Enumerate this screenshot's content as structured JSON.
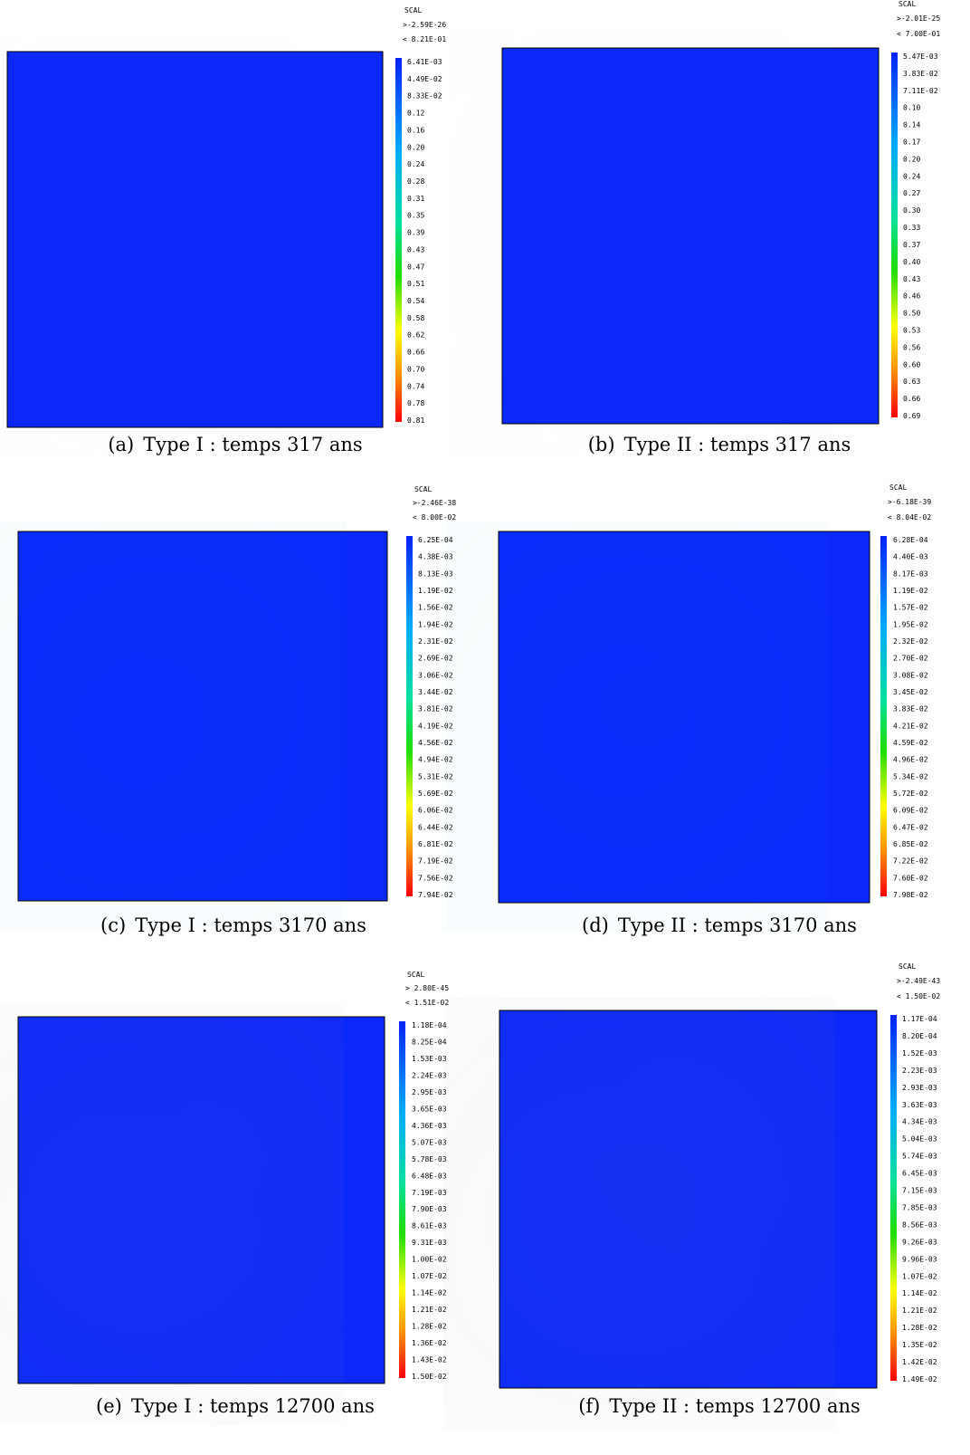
{
  "panels": [
    {
      "tag": "(a)",
      "caption": "Type I : temps 317 ans",
      "scal": "SCAL",
      "min": ">-2.59E-26",
      "max": "< 8.21E-01",
      "ticks": [
        "6.41E-03",
        "4.49E-02",
        "8.33E-02",
        "0.12",
        "0.16",
        "0.20",
        "0.24",
        "0.28",
        "0.31",
        "0.35",
        "0.39",
        "0.43",
        "0.47",
        "0.51",
        "0.54",
        "0.58",
        "0.62",
        "0.66",
        "0.70",
        "0.74",
        "0.78",
        "0.81"
      ]
    },
    {
      "tag": "(b)",
      "caption": "Type II : temps 317 ans",
      "scal": "SCAL",
      "min": ">-2.01E-25",
      "max": "< 7.00E-01",
      "ticks": [
        "5.47E-03",
        "3.83E-02",
        "7.11E-02",
        "0.10",
        "0.14",
        "0.17",
        "0.20",
        "0.24",
        "0.27",
        "0.30",
        "0.33",
        "0.37",
        "0.40",
        "0.43",
        "0.46",
        "0.50",
        "0.53",
        "0.56",
        "0.60",
        "0.63",
        "0.66",
        "0.69"
      ]
    },
    {
      "tag": "(c)",
      "caption": "Type I : temps 3170 ans",
      "scal": "SCAL",
      "min": ">-2.46E-38",
      "max": "< 8.00E-02",
      "ticks": [
        "6.25E-04",
        "4.38E-03",
        "8.13E-03",
        "1.19E-02",
        "1.56E-02",
        "1.94E-02",
        "2.31E-02",
        "2.69E-02",
        "3.06E-02",
        "3.44E-02",
        "3.81E-02",
        "4.19E-02",
        "4.56E-02",
        "4.94E-02",
        "5.31E-02",
        "5.69E-02",
        "6.06E-02",
        "6.44E-02",
        "6.81E-02",
        "7.19E-02",
        "7.56E-02",
        "7.94E-02"
      ]
    },
    {
      "tag": "(d)",
      "caption": "Type II : temps 3170 ans",
      "scal": "SCAL",
      "min": ">-6.18E-39",
      "max": "< 8.04E-02",
      "ticks": [
        "6.28E-04",
        "4.40E-03",
        "8.17E-03",
        "1.19E-02",
        "1.57E-02",
        "1.95E-02",
        "2.32E-02",
        "2.70E-02",
        "3.08E-02",
        "3.45E-02",
        "3.83E-02",
        "4.21E-02",
        "4.59E-02",
        "4.96E-02",
        "5.34E-02",
        "5.72E-02",
        "6.09E-02",
        "6.47E-02",
        "6.85E-02",
        "7.22E-02",
        "7.60E-02",
        "7.98E-02"
      ]
    },
    {
      "tag": "(e)",
      "caption": "Type I : temps 12700 ans",
      "scal": "SCAL",
      "min": "> 2.80E-45",
      "max": "< 1.51E-02",
      "ticks": [
        "1.18E-04",
        "8.25E-04",
        "1.53E-03",
        "2.24E-03",
        "2.95E-03",
        "3.65E-03",
        "4.36E-03",
        "5.07E-03",
        "5.78E-03",
        "6.48E-03",
        "7.19E-03",
        "7.90E-03",
        "8.61E-03",
        "9.31E-03",
        "1.00E-02",
        "1.07E-02",
        "1.14E-02",
        "1.21E-02",
        "1.28E-02",
        "1.36E-02",
        "1.43E-02",
        "1.50E-02"
      ]
    },
    {
      "tag": "(f)",
      "caption": "Type II : temps 12700 ans",
      "scal": "SCAL",
      "min": ">-2.49E-43",
      "max": "< 1.50E-02",
      "ticks": [
        "1.17E-04",
        "8.20E-04",
        "1.52E-03",
        "2.23E-03",
        "2.93E-03",
        "3.63E-03",
        "4.34E-03",
        "5.04E-03",
        "5.74E-03",
        "6.45E-03",
        "7.15E-03",
        "7.85E-03",
        "8.56E-03",
        "9.26E-03",
        "9.96E-03",
        "1.07E-02",
        "1.14E-02",
        "1.21E-02",
        "1.28E-02",
        "1.35E-02",
        "1.42E-02",
        "1.49E-02"
      ]
    }
  ]
}
